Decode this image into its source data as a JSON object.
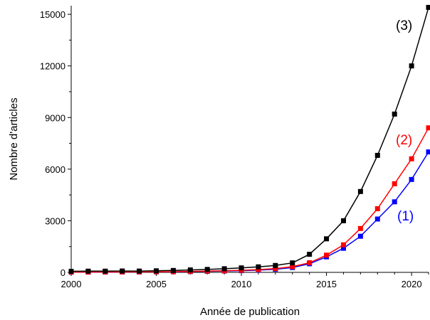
{
  "chart_data": {
    "type": "line",
    "xlabel": "Année de publication",
    "ylabel": "Nombre d'articles",
    "xlim": [
      2000,
      2021
    ],
    "ylim": [
      0,
      15500
    ],
    "x_ticks": [
      2000,
      2005,
      2010,
      2015,
      2020
    ],
    "y_ticks": [
      0,
      3000,
      6000,
      9000,
      12000,
      15000
    ],
    "grid": false,
    "marker": "square",
    "x": [
      2000,
      2001,
      2002,
      2003,
      2004,
      2005,
      2006,
      2007,
      2008,
      2009,
      2010,
      2011,
      2012,
      2013,
      2014,
      2015,
      2016,
      2017,
      2018,
      2019,
      2020,
      2021
    ],
    "series": [
      {
        "name": "(1)",
        "color": "#0000ff",
        "values": [
          10,
          15,
          18,
          20,
          25,
          30,
          35,
          45,
          60,
          80,
          100,
          130,
          180,
          280,
          500,
          900,
          1400,
          2100,
          3100,
          4100,
          5400,
          7000
        ]
      },
      {
        "name": "(2)",
        "color": "#ff0000",
        "values": [
          15,
          20,
          22,
          25,
          30,
          35,
          40,
          55,
          70,
          95,
          120,
          160,
          220,
          330,
          560,
          1000,
          1600,
          2550,
          3700,
          5150,
          6600,
          8400
        ]
      },
      {
        "name": "(3)",
        "color": "#000000",
        "values": [
          60,
          70,
          70,
          80,
          75,
          90,
          110,
          140,
          170,
          210,
          260,
          320,
          400,
          550,
          1050,
          1950,
          3000,
          4700,
          6800,
          9200,
          12000,
          15400
        ]
      }
    ]
  }
}
